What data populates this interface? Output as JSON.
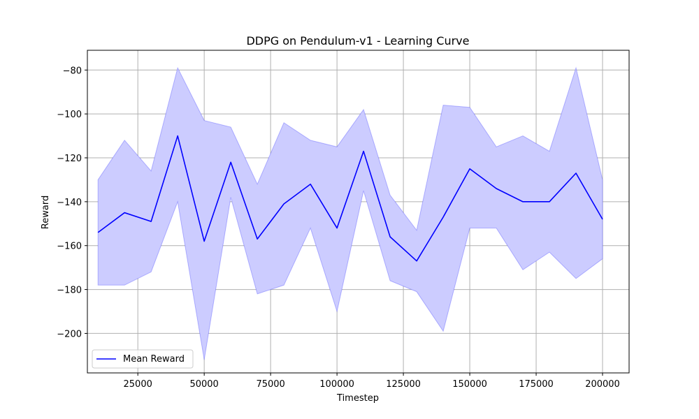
{
  "chart_data": {
    "type": "line",
    "title": "DDPG on Pendulum-v1 - Learning Curve",
    "xlabel": "Timestep",
    "ylabel": "Reward",
    "xlim": [
      6000,
      210000
    ],
    "ylim": [
      -218,
      -71
    ],
    "grid": true,
    "legend_position": "lower-left",
    "x": [
      10000,
      20000,
      30000,
      40000,
      50000,
      60000,
      70000,
      80000,
      90000,
      100000,
      110000,
      120000,
      130000,
      140000,
      150000,
      160000,
      170000,
      180000,
      190000,
      200000
    ],
    "series": [
      {
        "name": "Mean Reward",
        "color": "#0000ff",
        "values": [
          -154,
          -145,
          -149,
          -110,
          -158,
          -122,
          -157,
          -141,
          -132,
          -152,
          -117,
          -156,
          -167,
          -147,
          -125,
          -134,
          -140,
          -140,
          -127,
          -148
        ],
        "band_upper": [
          -130,
          -112,
          -126,
          -79,
          -103,
          -106,
          -132,
          -104,
          -112,
          -115,
          -98,
          -137,
          -153,
          -96,
          -97,
          -115,
          -110,
          -117,
          -79,
          -130
        ],
        "band_lower": [
          -178,
          -178,
          -172,
          -140,
          -212,
          -138,
          -182,
          -178,
          -152,
          -190,
          -135,
          -176,
          -181,
          -199,
          -152,
          -152,
          -171,
          -163,
          -175,
          -166
        ],
        "band_color": "#ccccff"
      }
    ],
    "x_ticks": [
      "25000",
      "50000",
      "75000",
      "100000",
      "125000",
      "150000",
      "175000",
      "200000"
    ],
    "x_tick_values": [
      25000,
      50000,
      75000,
      100000,
      125000,
      150000,
      175000,
      200000
    ],
    "y_ticks": [
      "−80",
      "−100",
      "−120",
      "−140",
      "−160",
      "−180",
      "−200"
    ],
    "y_tick_values": [
      -80,
      -100,
      -120,
      -140,
      -160,
      -180,
      -200
    ]
  }
}
